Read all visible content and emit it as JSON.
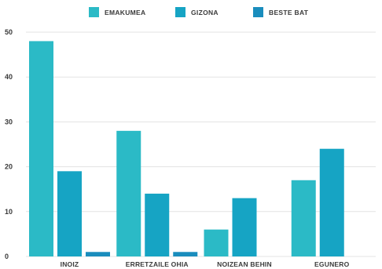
{
  "chart_data": {
    "type": "bar",
    "categories": [
      "INOIZ",
      "ERRETZAILE OHIA",
      "NOIZEAN BEHIN",
      "EGUNERO"
    ],
    "series": [
      {
        "name": "EMAKUMEA",
        "values": [
          48,
          28,
          6,
          17
        ],
        "color": "#2bbac6"
      },
      {
        "name": "GIZONA",
        "values": [
          19,
          14,
          13,
          24
        ],
        "color": "#16a4c4"
      },
      {
        "name": "BESTE BAT",
        "values": [
          1,
          1,
          0,
          0
        ],
        "color": "#1a8dbd"
      }
    ],
    "ylim": [
      0,
      50
    ],
    "yticks": [
      0,
      10,
      20,
      30,
      40,
      50
    ],
    "grid": true,
    "legend_position": "top-center",
    "title": "",
    "xlabel": "",
    "ylabel": ""
  }
}
